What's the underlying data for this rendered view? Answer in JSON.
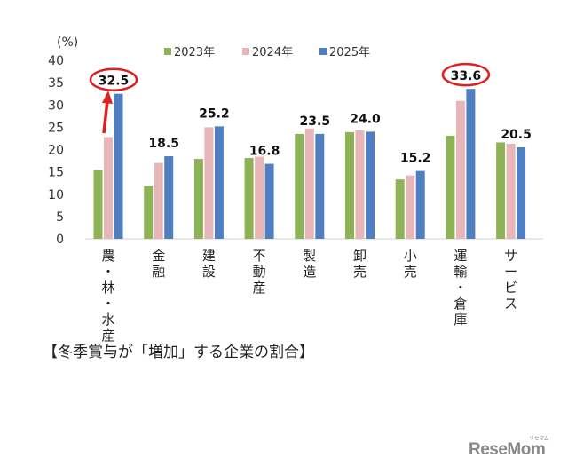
{
  "chart_data": {
    "type": "bar",
    "ylabel": "(%)",
    "ylim": [
      0,
      40
    ],
    "yticks": [
      0,
      5,
      10,
      15,
      20,
      25,
      30,
      35,
      40
    ],
    "grid": false,
    "legend_position": "top",
    "categories": [
      "農・林・水産",
      "金融",
      "建設",
      "不動産",
      "製造",
      "卸売",
      "小売",
      "運輸・倉庫",
      "サービス"
    ],
    "series": [
      {
        "name": "2023年",
        "color": "#8db356",
        "values": [
          15.4,
          11.8,
          17.9,
          18.1,
          23.5,
          23.9,
          13.3,
          23.1,
          21.6
        ]
      },
      {
        "name": "2024年",
        "color": "#e6b6b8",
        "values": [
          22.8,
          17.0,
          25.0,
          18.4,
          24.7,
          24.3,
          14.2,
          30.9,
          21.3
        ]
      },
      {
        "name": "2025年",
        "color": "#4f7fc0",
        "values": [
          32.5,
          18.5,
          25.2,
          16.8,
          23.5,
          24.0,
          15.2,
          33.6,
          20.5
        ]
      }
    ],
    "data_labels": [
      "32.5",
      "18.5",
      "25.2",
      "16.8",
      "23.5",
      "24.0",
      "15.2",
      "33.6",
      "20.5"
    ],
    "highlighted": [
      "32.5",
      "33.6"
    ],
    "highlight_color": "#e02020"
  },
  "caption": "【冬季賞与が「増加」する企業の割合】",
  "logo": "ReseMom",
  "logo_sub": "リセマム"
}
